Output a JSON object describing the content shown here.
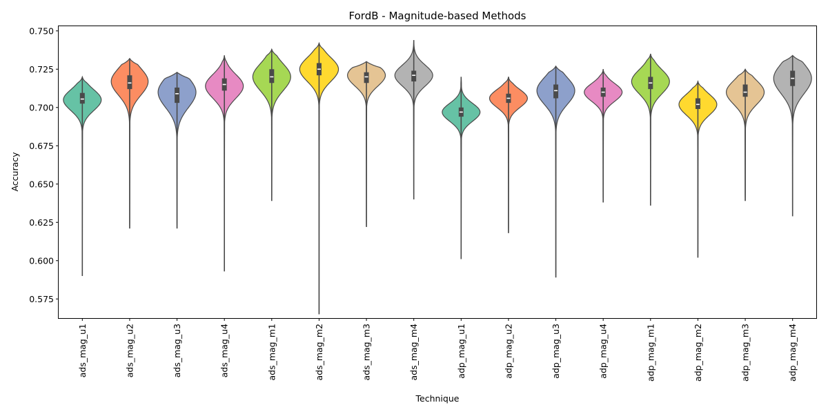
{
  "chart_data": {
    "type": "violin",
    "title": "FordB - Magnitude-based Methods",
    "xlabel": "Technique",
    "ylabel": "Accuracy",
    "ylim": [
      0.5625,
      0.7535
    ],
    "yticks": [
      0.575,
      0.6,
      0.625,
      0.65,
      0.675,
      0.7,
      0.725,
      0.75
    ],
    "ytick_labels": [
      "0.575",
      "0.600",
      "0.625",
      "0.650",
      "0.675",
      "0.700",
      "0.725",
      "0.750"
    ],
    "grid": false,
    "legend": "none",
    "categories": [
      "ads_mag_u1",
      "ads_mag_u2",
      "ads_mag_u3",
      "ads_mag_u4",
      "ads_mag_m1",
      "ads_mag_m2",
      "ads_mag_m3",
      "ads_mag_m4",
      "adp_mag_u1",
      "adp_mag_u2",
      "adp_mag_u3",
      "adp_mag_u4",
      "adp_mag_m1",
      "adp_mag_m2",
      "adp_mag_m3",
      "adp_mag_m4"
    ],
    "colors": [
      "#66c2a5",
      "#fc8d62",
      "#8da0cb",
      "#e78ac3",
      "#a6d854",
      "#ffd92f",
      "#e5c494",
      "#b3b3b3",
      "#66c2a5",
      "#fc8d62",
      "#8da0cb",
      "#e78ac3",
      "#a6d854",
      "#ffd92f",
      "#e5c494",
      "#b3b3b3"
    ],
    "distributions": [
      {
        "min": 0.59,
        "q1": 0.7025,
        "median": 0.7055,
        "q3": 0.7095,
        "max": 0.72,
        "mode": 0.705,
        "width": 0.8
      },
      {
        "min": 0.621,
        "q1": 0.712,
        "median": 0.716,
        "q3": 0.721,
        "max": 0.732,
        "mode": 0.717,
        "width": 0.78
      },
      {
        "min": 0.621,
        "q1": 0.703,
        "median": 0.709,
        "q3": 0.713,
        "max": 0.723,
        "mode": 0.71,
        "width": 0.8
      },
      {
        "min": 0.593,
        "q1": 0.711,
        "median": 0.715,
        "q3": 0.719,
        "max": 0.734,
        "mode": 0.714,
        "width": 0.8
      },
      {
        "min": 0.639,
        "q1": 0.716,
        "median": 0.72,
        "q3": 0.725,
        "max": 0.738,
        "mode": 0.72,
        "width": 0.8
      },
      {
        "min": 0.565,
        "q1": 0.721,
        "median": 0.725,
        "q3": 0.729,
        "max": 0.742,
        "mode": 0.725,
        "width": 0.82
      },
      {
        "min": 0.622,
        "q1": 0.716,
        "median": 0.72,
        "q3": 0.723,
        "max": 0.73,
        "mode": 0.721,
        "width": 0.8
      },
      {
        "min": 0.64,
        "q1": 0.717,
        "median": 0.721,
        "q3": 0.724,
        "max": 0.744,
        "mode": 0.721,
        "width": 0.8
      },
      {
        "min": 0.601,
        "q1": 0.694,
        "median": 0.697,
        "q3": 0.7,
        "max": 0.72,
        "mode": 0.697,
        "width": 0.8
      },
      {
        "min": 0.618,
        "q1": 0.703,
        "median": 0.706,
        "q3": 0.709,
        "max": 0.72,
        "mode": 0.706,
        "width": 0.8
      },
      {
        "min": 0.589,
        "q1": 0.706,
        "median": 0.711,
        "q3": 0.715,
        "max": 0.727,
        "mode": 0.711,
        "width": 0.8
      },
      {
        "min": 0.638,
        "q1": 0.707,
        "median": 0.71,
        "q3": 0.713,
        "max": 0.725,
        "mode": 0.71,
        "width": 0.8
      },
      {
        "min": 0.636,
        "q1": 0.712,
        "median": 0.716,
        "q3": 0.72,
        "max": 0.735,
        "mode": 0.717,
        "width": 0.8
      },
      {
        "min": 0.602,
        "q1": 0.699,
        "median": 0.702,
        "q3": 0.706,
        "max": 0.717,
        "mode": 0.702,
        "width": 0.8
      },
      {
        "min": 0.639,
        "q1": 0.707,
        "median": 0.71,
        "q3": 0.715,
        "max": 0.725,
        "mode": 0.71,
        "width": 0.8
      },
      {
        "min": 0.629,
        "q1": 0.714,
        "median": 0.719,
        "q3": 0.724,
        "max": 0.734,
        "mode": 0.719,
        "width": 0.8
      }
    ]
  }
}
